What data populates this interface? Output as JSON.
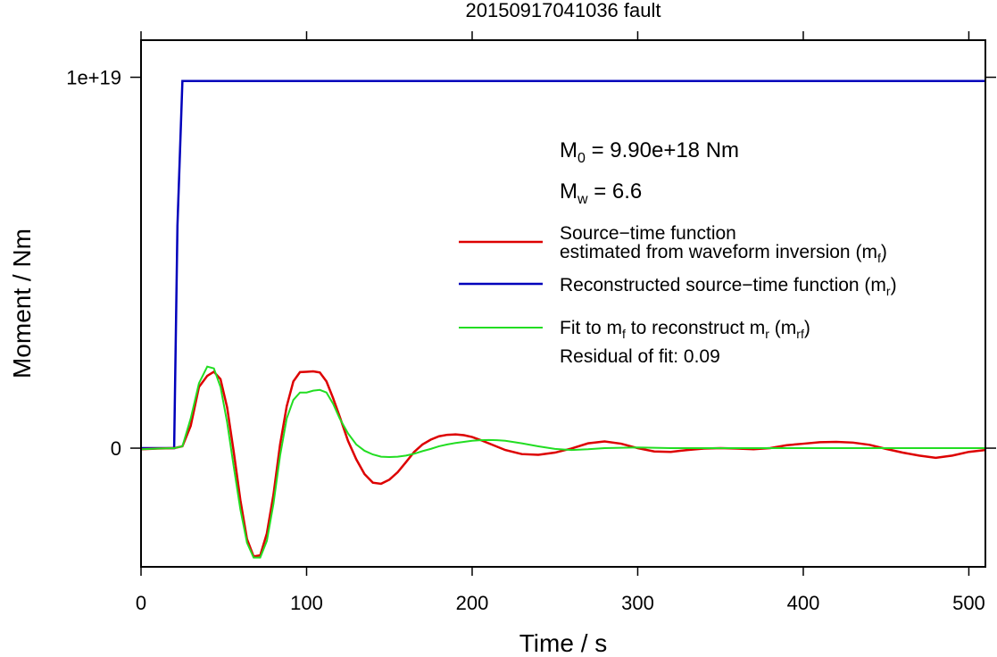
{
  "chart_data": {
    "type": "line",
    "title": "20150917041036 fault",
    "xlabel": "Time / s",
    "ylabel": "Moment / Nm",
    "xlim": [
      0,
      510
    ],
    "ylim": [
      -3.2e+18,
      1.1e+19
    ],
    "xticks": [
      0,
      100,
      200,
      300,
      400,
      500
    ],
    "xtick_labels": [
      "0",
      "100",
      "200",
      "300",
      "400",
      "500"
    ],
    "yticks": [
      0,
      1e+19
    ],
    "ytick_labels": [
      "0",
      "1e+19"
    ],
    "grid": false,
    "legend_position": "right",
    "colors": {
      "mf": "#dd0000",
      "mr": "#0000bb",
      "mrf": "#22dd22"
    },
    "annotations": {
      "m0_main": "M",
      "m0_sub": "0",
      "m0_value": " = 9.90e+18 Nm",
      "mw_main": "M",
      "mw_sub": "w",
      "mw_value": " = 6.6",
      "residual": "Residual of fit: 0.09"
    },
    "legend": {
      "mf_line1": "Source−time function",
      "mf_line2": "estimated from waveform inversion (m",
      "mf_sub": "f",
      "mf_close": ")",
      "mr_text": "Reconstructed source−time function (m",
      "mr_sub": "r",
      "mr_close": ")",
      "mrf_a": "Fit to m",
      "mrf_a_sub": "f",
      "mrf_b": " to reconstruct m",
      "mrf_b_sub": "r",
      "mrf_c": " (m",
      "mrf_c_sub": "rf",
      "mrf_close": ")"
    },
    "series": [
      {
        "key": "mf",
        "x": [
          0,
          10,
          20,
          25,
          30,
          35,
          40,
          44,
          48,
          52,
          56,
          60,
          64,
          68,
          72,
          76,
          80,
          84,
          88,
          92,
          96,
          100,
          104,
          108,
          112,
          116,
          120,
          125,
          130,
          135,
          140,
          145,
          150,
          155,
          160,
          165,
          170,
          175,
          180,
          185,
          190,
          195,
          200,
          205,
          210,
          220,
          230,
          240,
          250,
          260,
          270,
          280,
          290,
          300,
          310,
          320,
          330,
          340,
          350,
          360,
          370,
          380,
          390,
          400,
          410,
          420,
          430,
          440,
          450,
          460,
          470,
          480,
          490,
          500,
          510
        ],
        "y": [
          -3e+16,
          -1e+16,
          0,
          5e+16,
          6e+17,
          1.65e+18,
          1.95e+18,
          2.06e+18,
          1.86e+18,
          1.1e+18,
          -1e+17,
          -1.4e+18,
          -2.45e+18,
          -2.92e+18,
          -2.89e+18,
          -2.3e+18,
          -1.25e+18,
          1e+17,
          1.13e+18,
          1.8e+18,
          2.05e+18,
          2.06e+18,
          2.07e+18,
          2.04e+18,
          1.8e+18,
          1.35e+18,
          8.5e+17,
          2e+17,
          -3e+17,
          -7e+17,
          -9.3e+17,
          -9.6e+17,
          -8.5e+17,
          -6.5e+17,
          -3.8e+17,
          -1e+17,
          1e+17,
          2.3e+17,
          3.2e+17,
          3.6e+17,
          3.7e+17,
          3.5e+17,
          3e+17,
          2.2e+17,
          1.3e+17,
          -5e+16,
          -1.6e+17,
          -1.8e+17,
          -1.2e+17,
          -1e+16,
          1.3e+17,
          1.8e+17,
          1.2e+17,
          0,
          -9e+16,
          -1e+17,
          -5e+16,
          -1e+16,
          0,
          -1e+16,
          -3e+16,
          0,
          8e+16,
          1.2e+17,
          1.6e+17,
          1.7e+17,
          1.5e+17,
          9e+16,
          -2e+16,
          -1.2e+17,
          -2e+17,
          -2.6e+17,
          -2e+17,
          -1e+17,
          -5e+16
        ]
      },
      {
        "key": "mr",
        "x": [
          0,
          20,
          22,
          25,
          510
        ],
        "y": [
          0,
          0,
          6e+18,
          9.9e+18,
          9.9e+18
        ]
      },
      {
        "key": "mrf",
        "x": [
          0,
          10,
          20,
          25,
          30,
          35,
          40,
          44,
          48,
          52,
          56,
          60,
          64,
          68,
          72,
          76,
          80,
          84,
          88,
          92,
          96,
          100,
          104,
          108,
          112,
          116,
          120,
          125,
          130,
          135,
          140,
          145,
          150,
          155,
          160,
          165,
          170,
          175,
          180,
          185,
          190,
          195,
          200,
          205,
          210,
          215,
          220,
          230,
          240,
          250,
          260,
          270,
          280,
          290,
          300,
          310,
          320,
          340,
          360,
          380,
          400,
          420,
          440,
          460,
          480,
          500,
          510
        ],
        "y": [
          -3e+16,
          -1e+16,
          0,
          5e+16,
          8e+17,
          1.75e+18,
          2.2e+18,
          2.15e+18,
          1.65e+18,
          7e+17,
          -5e+17,
          -1.65e+18,
          -2.55e+18,
          -2.95e+18,
          -2.95e+18,
          -2.5e+18,
          -1.5e+18,
          -2e+17,
          8e+17,
          1.3e+18,
          1.5e+18,
          1.5e+18,
          1.55e+18,
          1.57e+18,
          1.5e+18,
          1.2e+18,
          8e+17,
          4e+17,
          1e+17,
          -7e+16,
          -1.7e+17,
          -2.3e+17,
          -2.4e+17,
          -2.3e+17,
          -2e+17,
          -1.5e+17,
          -8e+16,
          -2e+16,
          5e+16,
          1e+17,
          1.4e+17,
          1.7e+17,
          2e+17,
          2.15e+17,
          2.2e+17,
          2.15e+17,
          2e+17,
          1.3e+17,
          5e+16,
          -2e+16,
          -5e+16,
          -3e+16,
          0,
          1e+16,
          2e+16,
          1e+16,
          0,
          0,
          0,
          0,
          0,
          0,
          0,
          0,
          0,
          0,
          0
        ]
      }
    ]
  }
}
